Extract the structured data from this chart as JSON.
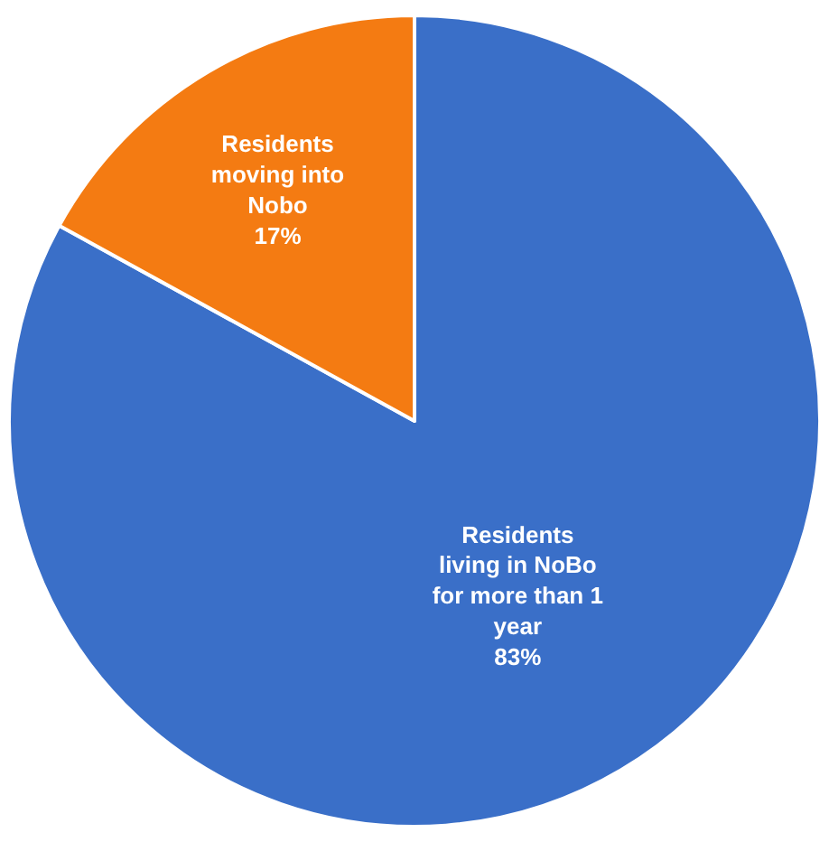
{
  "chart_data": {
    "type": "pie",
    "categories": [
      "Residents living in NoBo for more than 1 year",
      "Residents moving into Nobo"
    ],
    "values": [
      83,
      17
    ],
    "value_labels": [
      "83%",
      "17%"
    ],
    "colors": [
      "#3a6fc8",
      "#f47b12"
    ],
    "legend": false
  }
}
